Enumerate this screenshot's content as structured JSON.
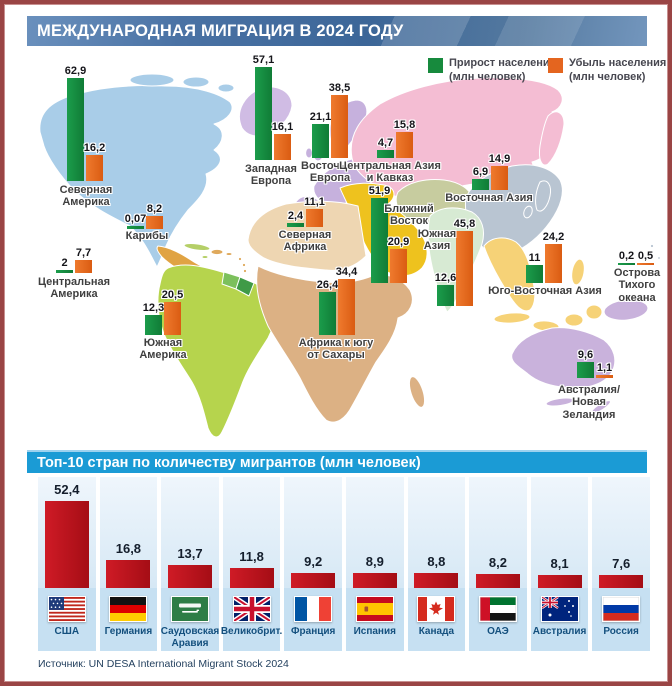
{
  "window": {
    "title": "МЕЖДУНАРОДНАЯ МИГРАЦИЯ В 2024 ГОДУ"
  },
  "legend": {
    "gain_label": "Прирост населения",
    "gain_sub": "(млн человек)",
    "loss_label": "Убыль населения",
    "loss_sub": "(млн человек)"
  },
  "colors": {
    "gain": "#178a3d",
    "loss": "#e4651f",
    "top10_bar": "#bf141f",
    "header_blue": "#1b9bd5",
    "title_blue": "#3c6698",
    "frame": "#9a4545"
  },
  "map": {
    "regions": [
      {
        "name": "Северная Америка",
        "gain_label": "62,9",
        "loss_label": "16,2",
        "gain": 62.9,
        "loss": 16.2
      },
      {
        "name": "Карибы",
        "gain_label": "0,07",
        "loss_label": "8,2",
        "gain": 0.07,
        "loss": 8.2
      },
      {
        "name": "Центральная Америка",
        "gain_label": "2",
        "loss_label": "7,7",
        "gain": 2,
        "loss": 7.7
      },
      {
        "name": "Южная Америка",
        "gain_label": "12,3",
        "loss_label": "20,5",
        "gain": 12.3,
        "loss": 20.5
      },
      {
        "name": "Западная Европа",
        "gain_label": "57,1",
        "loss_label": "16,1",
        "gain": 57.1,
        "loss": 16.1
      },
      {
        "name": "Восточная Европа",
        "gain_label": "21,1",
        "loss_label": "38,5",
        "gain": 21.1,
        "loss": 38.5
      },
      {
        "name": "Центральная Азия и Кавказ",
        "gain_label": "4,7",
        "loss_label": "15,8",
        "gain": 4.7,
        "loss": 15.8
      },
      {
        "name": "Северная Африка",
        "gain_label": "2,4",
        "loss_label": "11,1",
        "gain": 2.4,
        "loss": 11.1
      },
      {
        "name": "Ближний Восток",
        "gain_label": "51,9",
        "loss_label": "20,9",
        "gain": 51.9,
        "loss": 20.9
      },
      {
        "name": "Африка к югу от Сахары",
        "gain_label": "26,4",
        "loss_label": "34,4",
        "gain": 26.4,
        "loss": 34.4
      },
      {
        "name": "Южная Азия",
        "gain_label": "12,6",
        "loss_label": "45,8",
        "gain": 12.6,
        "loss": 45.8
      },
      {
        "name": "Восточная Азия",
        "gain_label": "6,9",
        "loss_label": "14,9",
        "gain": 6.9,
        "loss": 14.9
      },
      {
        "name": "Юго-Восточная Азия",
        "gain_label": "11",
        "loss_label": "24,2",
        "gain": 11,
        "loss": 24.2
      },
      {
        "name": "Острова Тихого океана",
        "gain_label": "0,2",
        "loss_label": "0,5",
        "gain": 0.2,
        "loss": 0.5
      },
      {
        "name": "Австралия/Новая Зеландия",
        "gain_label": "9,6",
        "loss_label": "1,1",
        "gain": 9.6,
        "loss": 1.1
      }
    ]
  },
  "top10": {
    "title": "Топ-10 стран по количеству мигрантов (млн человек)",
    "countries": [
      {
        "name": "США",
        "label": "52,4",
        "value": 52.4,
        "flag": "flag-usa"
      },
      {
        "name": "Германия",
        "label": "16,8",
        "value": 16.8,
        "flag": "flag-germany"
      },
      {
        "name": "Саудовская Аравия",
        "label": "13,7",
        "value": 13.7,
        "flag": "flag-saudi-arabia"
      },
      {
        "name": "Великобрит.",
        "label": "11,8",
        "value": 11.8,
        "flag": "flag-uk"
      },
      {
        "name": "Франция",
        "label": "9,2",
        "value": 9.2,
        "flag": "flag-france"
      },
      {
        "name": "Испания",
        "label": "8,9",
        "value": 8.9,
        "flag": "flag-spain"
      },
      {
        "name": "Канада",
        "label": "8,8",
        "value": 8.8,
        "flag": "flag-canada"
      },
      {
        "name": "ОАЭ",
        "label": "8,2",
        "value": 8.2,
        "flag": "flag-uae"
      },
      {
        "name": "Австралия",
        "label": "8,1",
        "value": 8.1,
        "flag": "flag-australia"
      },
      {
        "name": "Россия",
        "label": "7,6",
        "value": 7.6,
        "flag": "flag-russia"
      }
    ]
  },
  "source": "Источник: UN DESA International Migrant Stock 2024",
  "chart_data": [
    {
      "type": "bar",
      "title": "Международная миграция в 2024 году",
      "unit": "млн человек",
      "categories": [
        "Северная Америка",
        "Карибы",
        "Центральная Америка",
        "Южная Америка",
        "Западная Европа",
        "Восточная Европа",
        "Центральная Азия и Кавказ",
        "Северная Африка",
        "Ближний Восток",
        "Африка к югу от Сахары",
        "Южная Азия",
        "Восточная Азия",
        "Юго-Восточная Азия",
        "Острова Тихого океана",
        "Австралия/Новая Зеландия"
      ],
      "series": [
        {
          "name": "Прирост населения",
          "values": [
            62.9,
            0.07,
            2,
            12.3,
            57.1,
            21.1,
            4.7,
            2.4,
            51.9,
            26.4,
            12.6,
            6.9,
            11,
            0.2,
            9.6
          ]
        },
        {
          "name": "Убыль населения",
          "values": [
            16.2,
            8.2,
            7.7,
            20.5,
            16.1,
            38.5,
            15.8,
            11.1,
            20.9,
            34.4,
            45.8,
            14.9,
            24.2,
            0.5,
            1.1
          ]
        }
      ],
      "legend_position": "top-right",
      "grid": false
    },
    {
      "type": "bar",
      "title": "Топ-10 стран по количеству мигрантов (млн человек)",
      "categories": [
        "США",
        "Германия",
        "Саудовская Аравия",
        "Великобрит.",
        "Франция",
        "Испания",
        "Канада",
        "ОАЭ",
        "Австралия",
        "Россия"
      ],
      "values": [
        52.4,
        16.8,
        13.7,
        11.8,
        9.2,
        8.9,
        8.8,
        8.2,
        8.1,
        7.6
      ],
      "ylim": [
        0,
        55
      ],
      "grid": false
    }
  ]
}
